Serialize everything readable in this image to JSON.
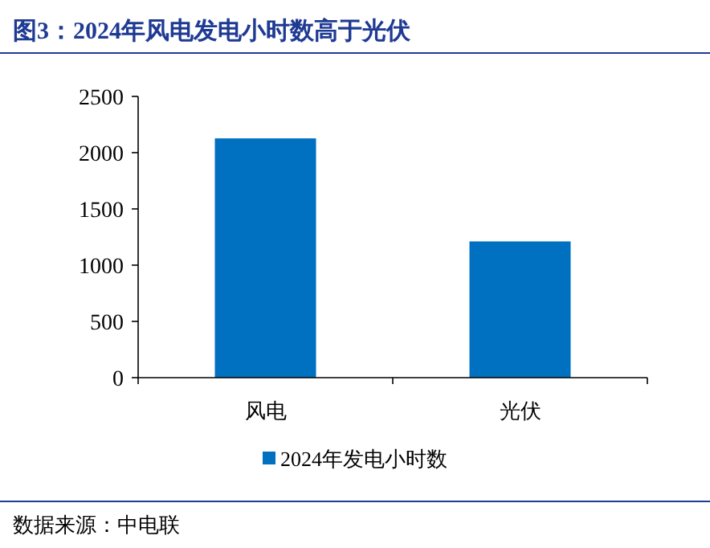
{
  "chart_data": {
    "type": "bar",
    "title": "图3：2024年风电发电小时数高于光伏",
    "categories": [
      "风电",
      "光伏"
    ],
    "series": [
      {
        "name": "2024年发电小时数",
        "color": "#0070c0",
        "values": [
          2127,
          1211
        ]
      }
    ],
    "ylim": [
      0,
      2500
    ],
    "yticks": [
      0,
      500,
      1000,
      1500,
      2000,
      2500
    ],
    "legend": "bottom",
    "grid": false,
    "annotations": [
      "数据来源：中电联"
    ]
  }
}
